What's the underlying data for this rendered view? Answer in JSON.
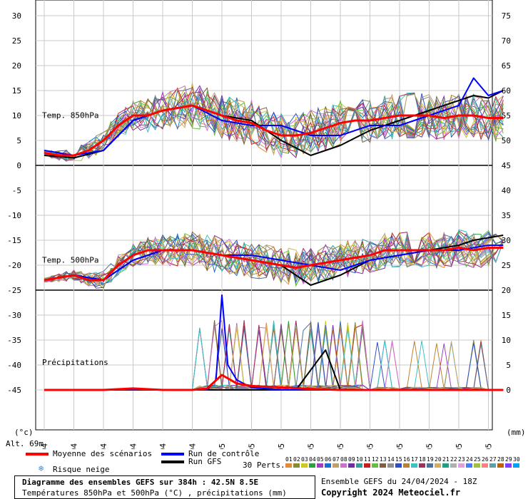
{
  "chart_data": {
    "type": "line",
    "x_dates": [
      "25/04",
      "26/04",
      "27/04",
      "28/04",
      "29/04",
      "30/04",
      "01/05",
      "02/05",
      "03/05",
      "04/05",
      "05/05",
      "06/05",
      "07/05",
      "08/05",
      "09/05",
      "10/05"
    ],
    "left_axis": {
      "unit": "(°c)",
      "ticks": [
        30,
        25,
        20,
        15,
        10,
        5,
        0,
        -5,
        -10,
        -15,
        -20,
        -25,
        -30,
        -35,
        -40,
        -45
      ]
    },
    "right_axis": {
      "unit": "(mm)",
      "ticks": [
        75,
        70,
        65,
        60,
        55,
        50,
        45,
        40,
        35,
        30,
        25,
        20,
        15,
        10,
        5,
        0
      ]
    },
    "panels": [
      {
        "label": "Temp. 850hPa",
        "ylim": [
          0,
          30
        ]
      },
      {
        "label": "Temp. 500hPa",
        "ylim": [
          -25,
          -5
        ]
      },
      {
        "label": "Précipitations",
        "ylim": [
          0,
          15
        ]
      }
    ],
    "series": [
      {
        "name": "Moyenne des scénarios",
        "panel": "Temp. 850hPa",
        "x": [
          0,
          0.5,
          1,
          1.5,
          2,
          2.5,
          3,
          3.5,
          4,
          4.5,
          5,
          5.5,
          6,
          6.5,
          7,
          7.5,
          8,
          8.5,
          9,
          9.5,
          10,
          10.5,
          11,
          11.5,
          12,
          12.5,
          13,
          13.5,
          14,
          14.5,
          15,
          15.5
        ],
        "y": [
          2.5,
          2,
          2,
          3,
          5,
          8,
          10,
          10,
          11,
          11.5,
          12,
          11,
          10,
          9,
          8.5,
          7,
          6,
          6,
          6.5,
          7.5,
          8.5,
          9,
          9,
          9.5,
          10,
          10,
          10,
          9.5,
          10,
          10,
          9.5,
          9.5
        ]
      },
      {
        "name": "Moyenne des scénarios",
        "panel": "Temp. 500hPa",
        "x": [
          0,
          0.5,
          1,
          1.5,
          2,
          2.5,
          3,
          3.5,
          4,
          4.5,
          5,
          5.5,
          6,
          6.5,
          7,
          7.5,
          8,
          8.5,
          9,
          9.5,
          10,
          10.5,
          11,
          11.5,
          12,
          12.5,
          13,
          13.5,
          14,
          14.5,
          15,
          15.5
        ],
        "y": [
          -23,
          -22.5,
          -22,
          -23,
          -23,
          -20,
          -18,
          -17,
          -17,
          -17,
          -17,
          -17.5,
          -18,
          -18.5,
          -19,
          -19.5,
          -20,
          -20.5,
          -20,
          -19.5,
          -19,
          -18.5,
          -18,
          -17,
          -17,
          -17,
          -17,
          -17,
          -16.5,
          -17,
          -16.5,
          -16.5
        ]
      },
      {
        "name": "Moyenne des scénarios",
        "panel": "Précipitations",
        "x": [
          0,
          2,
          3,
          4,
          5,
          5.5,
          6,
          6.5,
          7,
          8,
          9,
          10,
          11,
          12,
          13,
          14,
          15,
          15.5
        ],
        "y": [
          0,
          0,
          0.3,
          0,
          0,
          0.3,
          3,
          1.3,
          0.8,
          0.5,
          0.2,
          0,
          0,
          0,
          0,
          0,
          0,
          0
        ]
      },
      {
        "name": "Run de contrôle",
        "panel": "Temp. 850hPa",
        "x": [
          0,
          1,
          2,
          3,
          4,
          5,
          6,
          7,
          8,
          9,
          10,
          11,
          12,
          13,
          14,
          14.5,
          15,
          15.5
        ],
        "y": [
          3,
          2,
          3,
          9,
          11,
          12,
          9,
          8,
          8,
          6,
          6,
          8,
          8,
          10,
          12,
          17.5,
          14,
          15
        ]
      },
      {
        "name": "Run de contrôle",
        "panel": "Temp. 500hPa",
        "x": [
          0,
          1,
          2,
          3,
          4,
          5,
          6,
          7,
          8,
          9,
          10,
          11,
          12,
          13,
          14,
          15,
          15.5
        ],
        "y": [
          -23,
          -22,
          -23,
          -19,
          -17,
          -17,
          -18,
          -18,
          -19,
          -20,
          -21,
          -19,
          -18,
          -17,
          -17,
          -16,
          -16
        ]
      },
      {
        "name": "Run de contrôle",
        "panel": "Précipitations",
        "x": [
          0,
          5.5,
          5.8,
          6,
          6.2,
          6.5,
          7,
          8,
          15.5
        ],
        "y": [
          0,
          0,
          2,
          19,
          5,
          2,
          0.5,
          0,
          0
        ]
      },
      {
        "name": "Run GFS",
        "panel": "Temp. 850hPa",
        "x": [
          0,
          1,
          2,
          3,
          4,
          5,
          6,
          7,
          8,
          9,
          10,
          11,
          12,
          13,
          14,
          14.5,
          15,
          15.5
        ],
        "y": [
          2,
          1.5,
          3,
          9,
          11,
          12,
          10,
          9,
          5,
          2,
          4,
          7,
          9,
          11,
          13,
          14,
          13.5,
          15
        ]
      },
      {
        "name": "Run GFS",
        "panel": "Temp. 500hPa",
        "x": [
          0,
          1,
          2,
          3,
          4,
          5,
          6,
          7,
          8,
          9,
          10,
          11,
          12,
          13,
          14,
          14.5,
          15,
          15.5
        ],
        "y": [
          -23,
          -22,
          -23,
          -19,
          -17,
          -17,
          -18,
          -19,
          -20,
          -24,
          -22,
          -19,
          -18,
          -17,
          -16,
          -15,
          -14.5,
          -14
        ]
      },
      {
        "name": "Run GFS",
        "panel": "Précipitations",
        "x": [
          0,
          8.5,
          9,
          9.5,
          10,
          15.5
        ],
        "y": [
          0,
          0,
          4,
          8,
          0,
          0
        ]
      }
    ],
    "spaghetti_colors": [
      "#e08c3c",
      "#8a8a30",
      "#2ba040",
      "#1a6ed0",
      "#a040c0",
      "#d0c820",
      "#c0a070",
      "#7030a0",
      "#30a0a0",
      "#c02020",
      "#60c040",
      "#806040",
      "#d070d0",
      "#909090",
      "#3050c0",
      "#c08030",
      "#40c0c0",
      "#a03060",
      "#5070a0",
      "#d0b060"
    ],
    "annotations": [
      "Temp. 850hPa",
      "Temp. 500hPa",
      "Précipitations"
    ],
    "grid": true
  },
  "alt_label": "Alt. 69m",
  "legend": {
    "mean": "Moyenne des scénarios",
    "control": "Run de contrôle",
    "gfs": "Run GFS",
    "snow": "Risque neige",
    "perts": "30 Perts.",
    "mean_color": "#ff0000",
    "control_color": "#0000ff",
    "gfs_color": "#000000"
  },
  "pert_labels": [
    "01",
    "02",
    "03",
    "04",
    "05",
    "06",
    "07",
    "08",
    "09",
    "10",
    "11",
    "12",
    "13",
    "14",
    "15",
    "16",
    "17",
    "18",
    "19",
    "20",
    "21",
    "22",
    "23",
    "24",
    "25",
    "26",
    "27",
    "28",
    "29",
    "30"
  ],
  "pert_colors": [
    "#e08c3c",
    "#8a8a30",
    "#d0c820",
    "#2ba040",
    "#a040c0",
    "#1a6ed0",
    "#c0a070",
    "#d070d0",
    "#7030a0",
    "#30a0a0",
    "#c02020",
    "#60c040",
    "#806040",
    "#909090",
    "#3050c0",
    "#c08030",
    "#40c0c0",
    "#a03060",
    "#5070a0",
    "#d0b060",
    "#20a080",
    "#b0b0b0",
    "#e0a0e0",
    "#4080ff",
    "#a0c040",
    "#ff8080",
    "#60a0a0",
    "#c06000",
    "#8040ff",
    "#00a0ff"
  ],
  "footer": {
    "title": "Diagramme des ensembles GEFS sur 384h : 42.5N 8.5E",
    "subtitle": "Températures 850hPa et 500hPa (°C) , précipitations (mm)",
    "run": "Ensemble GEFS du 24/04/2024 - 18Z",
    "copyright": "Copyright 2024 Meteociel.fr"
  }
}
